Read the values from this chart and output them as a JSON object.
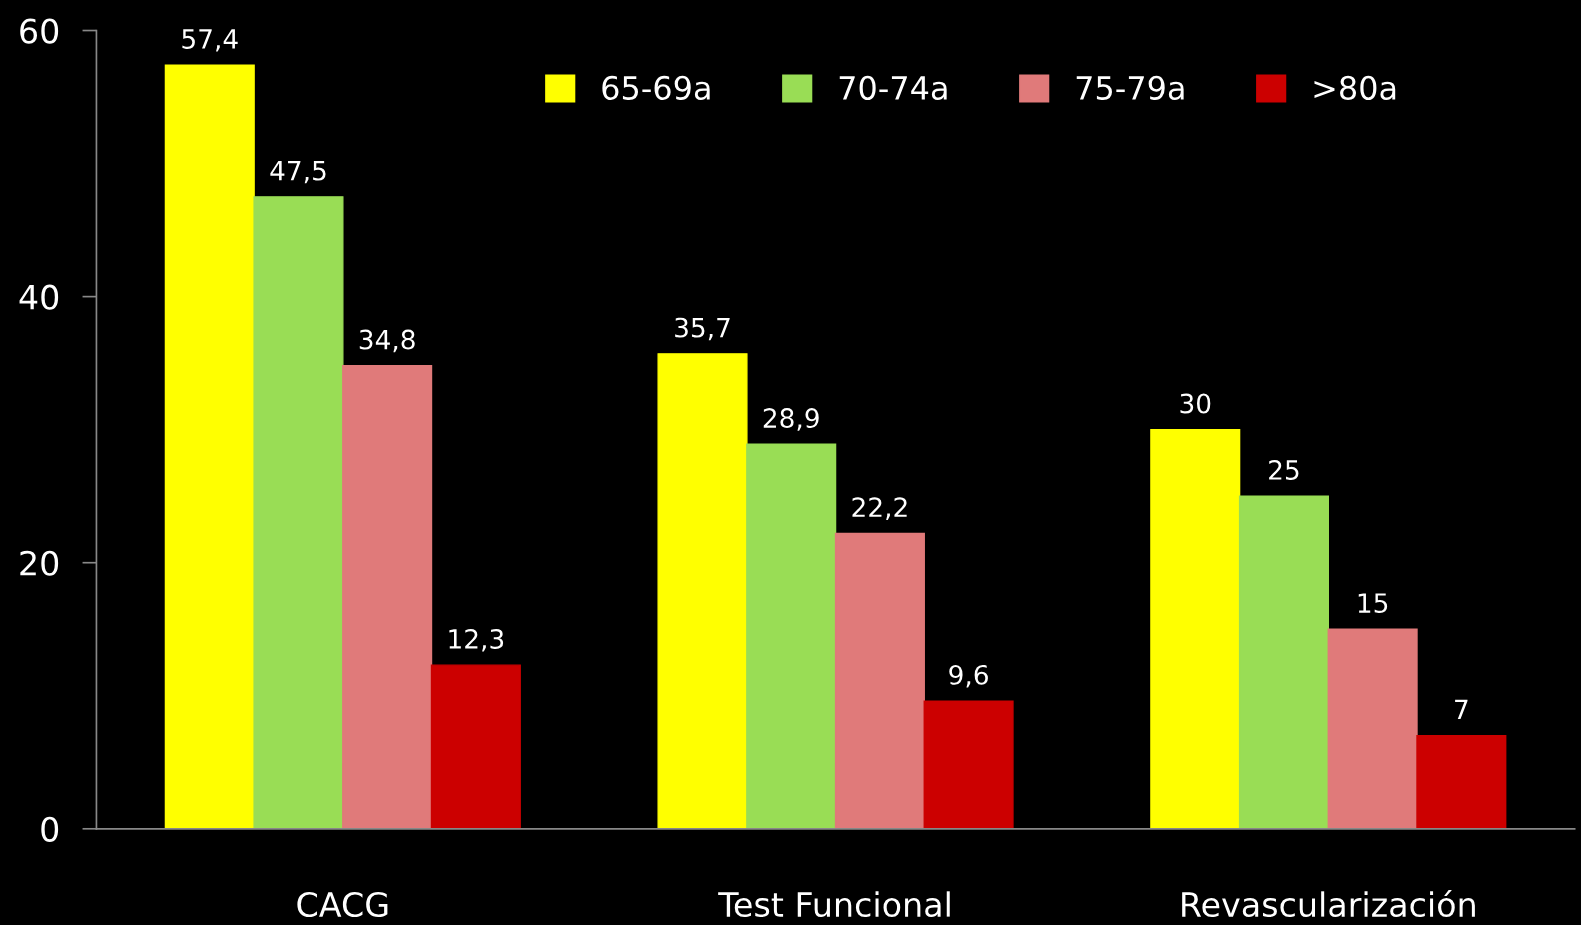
{
  "chart_data": {
    "type": "bar",
    "categories": [
      "CACG",
      "Test Funcional",
      "Revascularización"
    ],
    "series": [
      {
        "name": "65-69a",
        "color": "#ffff00",
        "values": [
          57.4,
          35.7,
          30
        ],
        "value_labels": [
          "57,4",
          "35,7",
          "30"
        ]
      },
      {
        "name": "70-74a",
        "color": "#99dd55",
        "values": [
          47.5,
          28.9,
          25
        ],
        "value_labels": [
          "47,5",
          "28,9",
          "25"
        ]
      },
      {
        "name": "75-79a",
        "color": "#e07a7a",
        "values": [
          34.8,
          22.2,
          15
        ],
        "value_labels": [
          "34,8",
          "22,2",
          "15"
        ]
      },
      {
        "name": ">80a",
        "color": "#cc0000",
        "values": [
          12.3,
          9.6,
          7
        ],
        "value_labels": [
          "12,3",
          "9,6",
          "7"
        ]
      }
    ],
    "ylim": [
      0,
      60
    ],
    "yticks": [
      0,
      20,
      40,
      60
    ],
    "grid": false,
    "legend": "top right"
  }
}
